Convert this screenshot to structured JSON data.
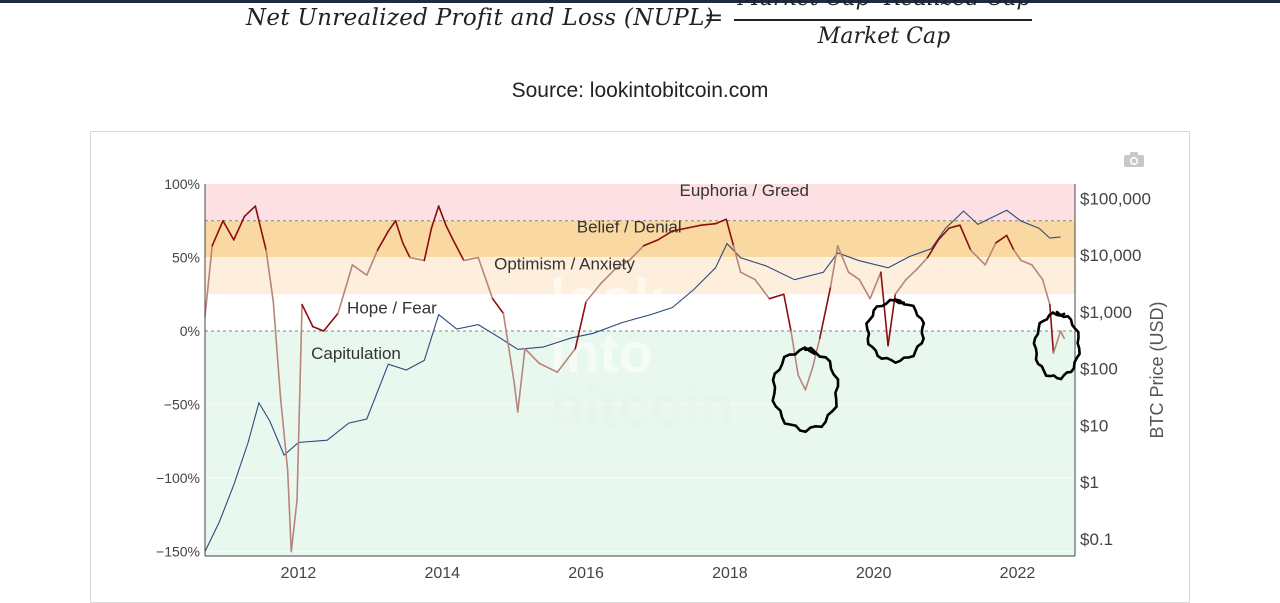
{
  "formula": {
    "lhs": "Net Unrealized Profit and Loss (NUPL)",
    "eq": "=",
    "numerator": "Market Cap -Realized Cap",
    "denominator": "Market Cap"
  },
  "source": "Source: lookintobitcoin.com",
  "watermark": [
    "look",
    "into",
    "bitcoin"
  ],
  "colors": {
    "euphoria": "#fde0e4",
    "belief": "#fad8a2",
    "optimism": "#fdefdc",
    "hope": "#ffffff",
    "capitulation": "#e9f8ef",
    "nupl_line": "#8b0e0e",
    "nupl_line_light": "#b9847a",
    "price_line": "#2c4a7e",
    "annotation": "#000000"
  },
  "chart_data": {
    "type": "line",
    "x_ticks": [
      "2012",
      "2014",
      "2016",
      "2018",
      "2020",
      "2022"
    ],
    "x_range": [
      2010.7,
      2022.8
    ],
    "left_axis": {
      "ticks": [
        "100%",
        "50%",
        "0%",
        "−50%",
        "−100%",
        "−150%"
      ],
      "tick_values": [
        100,
        50,
        0,
        -50,
        -100,
        -150
      ],
      "range": [
        -153,
        100
      ]
    },
    "right_axis": {
      "label": "BTC Price (USD)",
      "ticks": [
        "$100,000",
        "$10,000",
        "$1,000",
        "$100",
        "$10",
        "$1",
        "$0.1"
      ],
      "tick_values": [
        100000,
        10000,
        1000,
        100,
        10,
        1,
        0.1
      ],
      "log": true
    },
    "zones": [
      {
        "name": "Euphoria / Greed",
        "from": 75,
        "to": 100,
        "color_key": "euphoria"
      },
      {
        "name": "Belief / Denial",
        "from": 50,
        "to": 75,
        "color_key": "belief"
      },
      {
        "name": "Optimism / Anxiety",
        "from": 25,
        "to": 50,
        "color_key": "optimism"
      },
      {
        "name": "Hope / Fear",
        "from": 0,
        "to": 25,
        "color_key": "hope"
      },
      {
        "name": "Capitulation",
        "from": -153,
        "to": 0,
        "color_key": "capitulation"
      }
    ],
    "series": [
      {
        "key": "nupl",
        "axis": "left",
        "points": [
          [
            2010.7,
            10
          ],
          [
            2010.8,
            58
          ],
          [
            2010.95,
            75
          ],
          [
            2011.1,
            62
          ],
          [
            2011.25,
            78
          ],
          [
            2011.4,
            85
          ],
          [
            2011.55,
            55
          ],
          [
            2011.65,
            20
          ],
          [
            2011.75,
            -45
          ],
          [
            2011.85,
            -95
          ],
          [
            2011.9,
            -150
          ],
          [
            2011.98,
            -115
          ],
          [
            2012.05,
            18
          ],
          [
            2012.2,
            3
          ],
          [
            2012.35,
            0
          ],
          [
            2012.55,
            12
          ],
          [
            2012.75,
            45
          ],
          [
            2012.95,
            38
          ],
          [
            2013.1,
            55
          ],
          [
            2013.25,
            68
          ],
          [
            2013.35,
            75
          ],
          [
            2013.45,
            60
          ],
          [
            2013.55,
            50
          ],
          [
            2013.75,
            48
          ],
          [
            2013.85,
            70
          ],
          [
            2013.95,
            85
          ],
          [
            2014.05,
            72
          ],
          [
            2014.15,
            62
          ],
          [
            2014.3,
            48
          ],
          [
            2014.5,
            50
          ],
          [
            2014.7,
            22
          ],
          [
            2014.85,
            12
          ],
          [
            2015.0,
            -35
          ],
          [
            2015.05,
            -55
          ],
          [
            2015.15,
            -12
          ],
          [
            2015.35,
            -22
          ],
          [
            2015.6,
            -28
          ],
          [
            2015.85,
            -12
          ],
          [
            2016.0,
            20
          ],
          [
            2016.2,
            32
          ],
          [
            2016.4,
            42
          ],
          [
            2016.6,
            48
          ],
          [
            2016.8,
            58
          ],
          [
            2017.0,
            62
          ],
          [
            2017.2,
            68
          ],
          [
            2017.4,
            70
          ],
          [
            2017.6,
            72
          ],
          [
            2017.8,
            73
          ],
          [
            2017.95,
            76
          ],
          [
            2018.05,
            58
          ],
          [
            2018.15,
            40
          ],
          [
            2018.35,
            35
          ],
          [
            2018.55,
            22
          ],
          [
            2018.75,
            25
          ],
          [
            2018.85,
            0
          ],
          [
            2018.95,
            -30
          ],
          [
            2019.05,
            -40
          ],
          [
            2019.15,
            -25
          ],
          [
            2019.25,
            -5
          ],
          [
            2019.4,
            30
          ],
          [
            2019.5,
            58
          ],
          [
            2019.65,
            40
          ],
          [
            2019.8,
            35
          ],
          [
            2019.95,
            22
          ],
          [
            2020.1,
            40
          ],
          [
            2020.2,
            -10
          ],
          [
            2020.3,
            25
          ],
          [
            2020.45,
            35
          ],
          [
            2020.6,
            42
          ],
          [
            2020.75,
            50
          ],
          [
            2020.9,
            62
          ],
          [
            2021.05,
            70
          ],
          [
            2021.2,
            72
          ],
          [
            2021.35,
            55
          ],
          [
            2021.55,
            45
          ],
          [
            2021.7,
            60
          ],
          [
            2021.85,
            65
          ],
          [
            2021.95,
            55
          ],
          [
            2022.05,
            48
          ],
          [
            2022.2,
            45
          ],
          [
            2022.35,
            35
          ],
          [
            2022.45,
            18
          ],
          [
            2022.5,
            -15
          ],
          [
            2022.6,
            0
          ],
          [
            2022.65,
            -5
          ]
        ]
      },
      {
        "key": "btc_price",
        "axis": "right",
        "points": [
          [
            2010.7,
            0.06
          ],
          [
            2010.9,
            0.2
          ],
          [
            2011.1,
            0.9
          ],
          [
            2011.3,
            5
          ],
          [
            2011.45,
            25
          ],
          [
            2011.6,
            12
          ],
          [
            2011.8,
            3
          ],
          [
            2012.0,
            5
          ],
          [
            2012.4,
            5.5
          ],
          [
            2012.7,
            11
          ],
          [
            2012.95,
            13
          ],
          [
            2013.25,
            120
          ],
          [
            2013.5,
            95
          ],
          [
            2013.75,
            140
          ],
          [
            2013.95,
            900
          ],
          [
            2014.2,
            500
          ],
          [
            2014.5,
            600
          ],
          [
            2014.8,
            350
          ],
          [
            2015.05,
            220
          ],
          [
            2015.4,
            240
          ],
          [
            2015.8,
            350
          ],
          [
            2016.1,
            420
          ],
          [
            2016.5,
            650
          ],
          [
            2016.9,
            900
          ],
          [
            2017.2,
            1200
          ],
          [
            2017.5,
            2500
          ],
          [
            2017.8,
            6000
          ],
          [
            2017.96,
            16000
          ],
          [
            2018.15,
            9000
          ],
          [
            2018.5,
            6500
          ],
          [
            2018.9,
            3700
          ],
          [
            2019.3,
            5000
          ],
          [
            2019.5,
            11000
          ],
          [
            2019.8,
            8000
          ],
          [
            2020.2,
            6000
          ],
          [
            2020.5,
            9500
          ],
          [
            2020.8,
            13000
          ],
          [
            2021.0,
            30000
          ],
          [
            2021.25,
            60000
          ],
          [
            2021.45,
            35000
          ],
          [
            2021.85,
            62000
          ],
          [
            2022.05,
            40000
          ],
          [
            2022.3,
            30000
          ],
          [
            2022.45,
            20000
          ],
          [
            2022.6,
            21000
          ]
        ]
      }
    ],
    "annotations": [
      {
        "type": "hand-drawn circle",
        "x": 2019.05,
        "y": -40
      },
      {
        "type": "hand-drawn circle",
        "x": 2020.3,
        "y": 0
      },
      {
        "type": "hand-drawn circle",
        "x": 2022.55,
        "y": -10
      }
    ]
  }
}
